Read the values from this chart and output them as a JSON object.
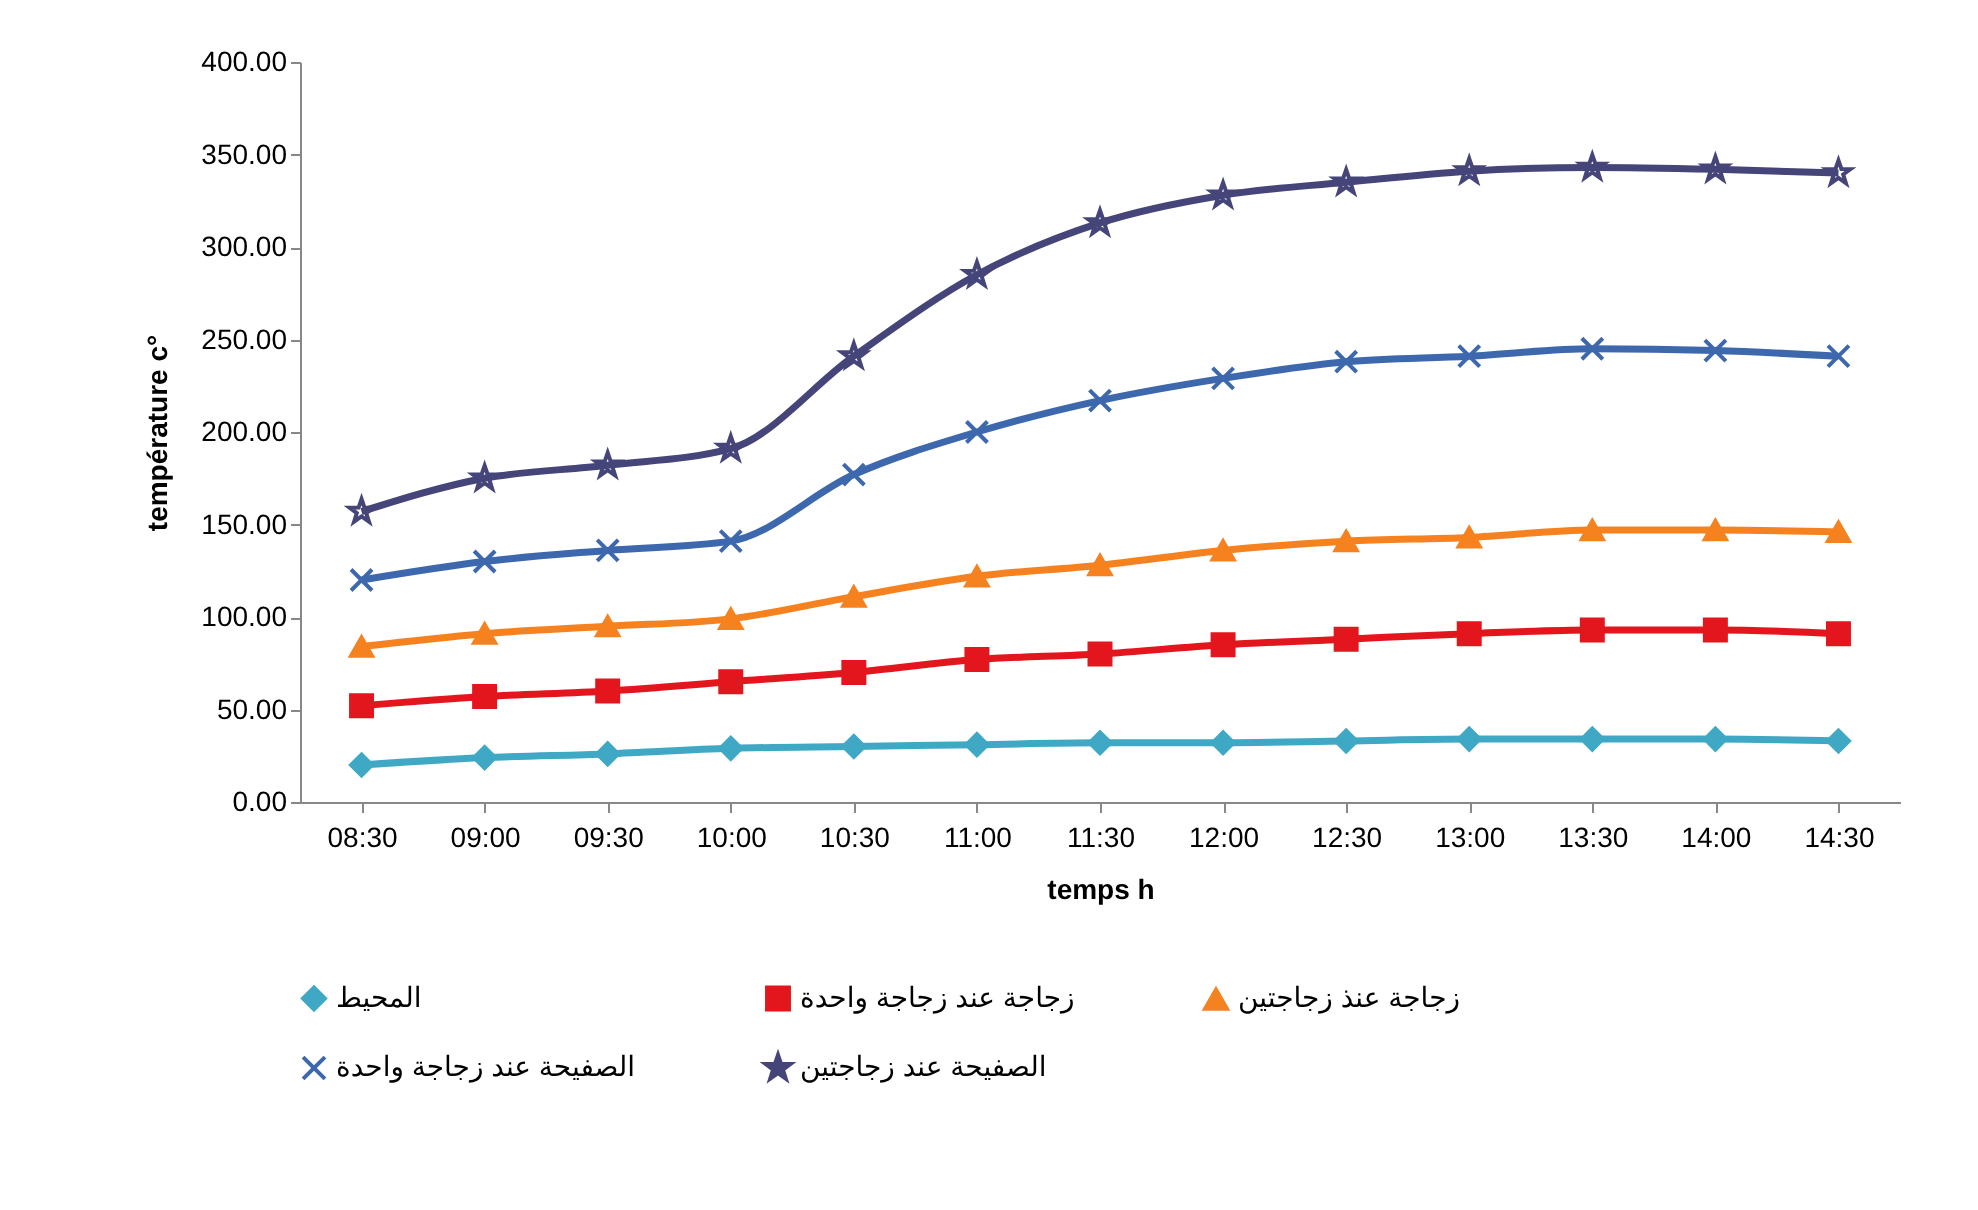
{
  "chart_data": {
    "type": "line",
    "xlabel": "temps h",
    "ylabel": "température c°",
    "categories": [
      "08:30",
      "09:00",
      "09:30",
      "10:00",
      "10:30",
      "11:00",
      "11:30",
      "12:00",
      "12:30",
      "13:00",
      "13:30",
      "14:00",
      "14:30"
    ],
    "ylim": [
      0,
      400
    ],
    "yticks": [
      {
        "value": 0,
        "label": "0.00"
      },
      {
        "value": 50,
        "label": "50.00"
      },
      {
        "value": 100,
        "label": "100.00"
      },
      {
        "value": 150,
        "label": "150.00"
      },
      {
        "value": 200,
        "label": "200.00"
      },
      {
        "value": 250,
        "label": "250.00"
      },
      {
        "value": 300,
        "label": "300.00"
      },
      {
        "value": 350,
        "label": "350.00"
      },
      {
        "value": 400,
        "label": "400.00"
      }
    ],
    "grid": false,
    "legend": "bottom",
    "series": [
      {
        "name": "المحيط",
        "color": "#3fa8c4",
        "marker": "diamond",
        "values": [
          20,
          24,
          26,
          29,
          30,
          31,
          32,
          32,
          33,
          34,
          34,
          34,
          33
        ]
      },
      {
        "name": "زجاجة عند زجاجة واحدة",
        "color": "#e3161e",
        "marker": "square",
        "values": [
          52,
          57,
          60,
          65,
          70,
          77,
          80,
          85,
          88,
          91,
          93,
          93,
          91
        ]
      },
      {
        "name": "زجاجة عنذ زجاجتين",
        "color": "#f5821f",
        "marker": "triangle",
        "values": [
          84,
          91,
          95,
          99,
          111,
          122,
          128,
          136,
          141,
          143,
          147,
          147,
          146
        ]
      },
      {
        "name": "الصفيحة عند زجاجة واحدة",
        "color": "#3d68ad",
        "marker": "cross",
        "values": [
          120,
          130,
          136,
          141,
          177,
          200,
          217,
          229,
          238,
          241,
          245,
          244,
          241
        ]
      },
      {
        "name": "الصفيحة عند زجاجتين",
        "color": "#45457a",
        "marker": "star",
        "values": [
          157,
          175,
          182,
          191,
          241,
          285,
          313,
          328,
          335,
          341,
          343,
          342,
          340
        ]
      }
    ]
  }
}
